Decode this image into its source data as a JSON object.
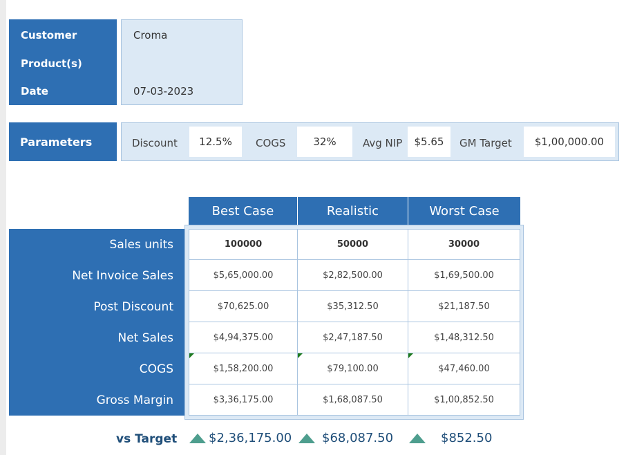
{
  "customer_block": {
    "labels": [
      "Customer",
      "Product(s)",
      "Date"
    ],
    "customer": "Croma",
    "products": "",
    "date": "07-03-2023"
  },
  "parameters": {
    "title": "Parameters",
    "items": [
      {
        "label": "Discount",
        "value": "12.5%"
      },
      {
        "label": "COGS",
        "value": "32%"
      },
      {
        "label": "Avg NIP",
        "value": "$5.65"
      },
      {
        "label": "GM Target",
        "value": "$1,00,000.00"
      }
    ]
  },
  "scenarios": {
    "headers": [
      "Best Case",
      "Realistic",
      "Worst Case"
    ],
    "rows": [
      {
        "label": "Sales units",
        "values": [
          "100000",
          "50000",
          "30000"
        ]
      },
      {
        "label": "Net Invoice Sales",
        "values": [
          "$5,65,000.00",
          "$2,82,500.00",
          "$1,69,500.00"
        ]
      },
      {
        "label": "Post Discount",
        "values": [
          "$70,625.00",
          "$35,312.50",
          "$21,187.50"
        ]
      },
      {
        "label": "Net Sales",
        "values": [
          "$4,94,375.00",
          "$2,47,187.50",
          "$1,48,312.50"
        ]
      },
      {
        "label": "COGS",
        "values": [
          "$1,58,200.00",
          "$79,100.00",
          "$47,460.00"
        ]
      },
      {
        "label": "Gross Margin",
        "values": [
          "$3,36,175.00",
          "$1,68,087.50",
          "$1,00,852.50"
        ]
      }
    ]
  },
  "vs_target": {
    "label": "vs Target",
    "icon": "up-triangle-icon",
    "values": [
      "$2,36,175.00",
      "$68,087.50",
      "$852.50"
    ]
  },
  "colors": {
    "accent": "#2e6fb3",
    "light": "#dce9f5",
    "positive_icon": "#4e9e8e"
  }
}
